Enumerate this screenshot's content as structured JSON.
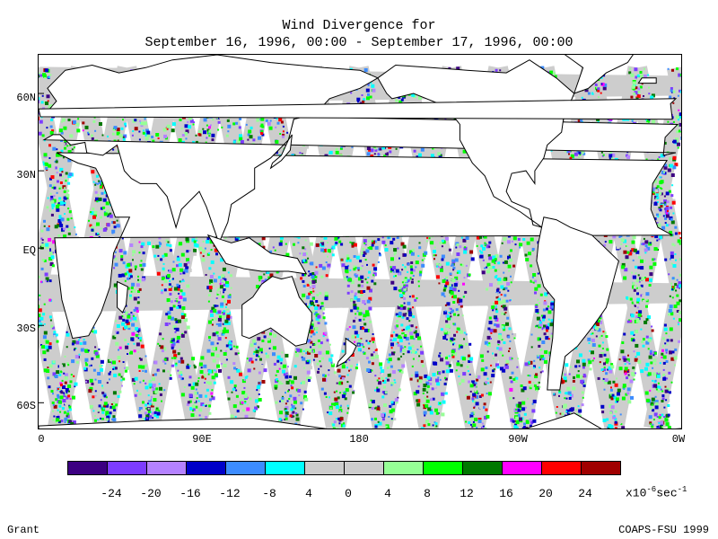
{
  "title": {
    "line1": "Wind Divergence for",
    "line2": "September 16, 1996, 00:00 - September 17, 1996, 00:00"
  },
  "map": {
    "lat_labels": [
      "60N",
      "30N",
      "EQ",
      "30S",
      "60S"
    ],
    "lon_labels": [
      "0",
      "90E",
      "180",
      "90W",
      "0W"
    ],
    "land_color": "#ffffff",
    "coastline_color": "#000000",
    "swath_background": "#cdcdcd"
  },
  "legend": {
    "colors": [
      "#3c0082",
      "#7d3cff",
      "#b482ff",
      "#0000c8",
      "#3c8cff",
      "#00ffff",
      "#cdcdcd",
      "#cdcdcd",
      "#96ff96",
      "#00ff00",
      "#007800",
      "#ff00ff",
      "#ff0000",
      "#a00000"
    ],
    "tick_labels": [
      "-24",
      "-20",
      "-16",
      "-12",
      "-8",
      "4",
      "0",
      "4",
      "8",
      "12",
      "16",
      "20",
      "24"
    ],
    "units_prefix": "x10",
    "units_exp": "-6",
    "units_suffix": "sec",
    "units_exp2": "-1"
  },
  "footer": {
    "left": "Grant",
    "right": "COAPS-FSU 1999"
  }
}
